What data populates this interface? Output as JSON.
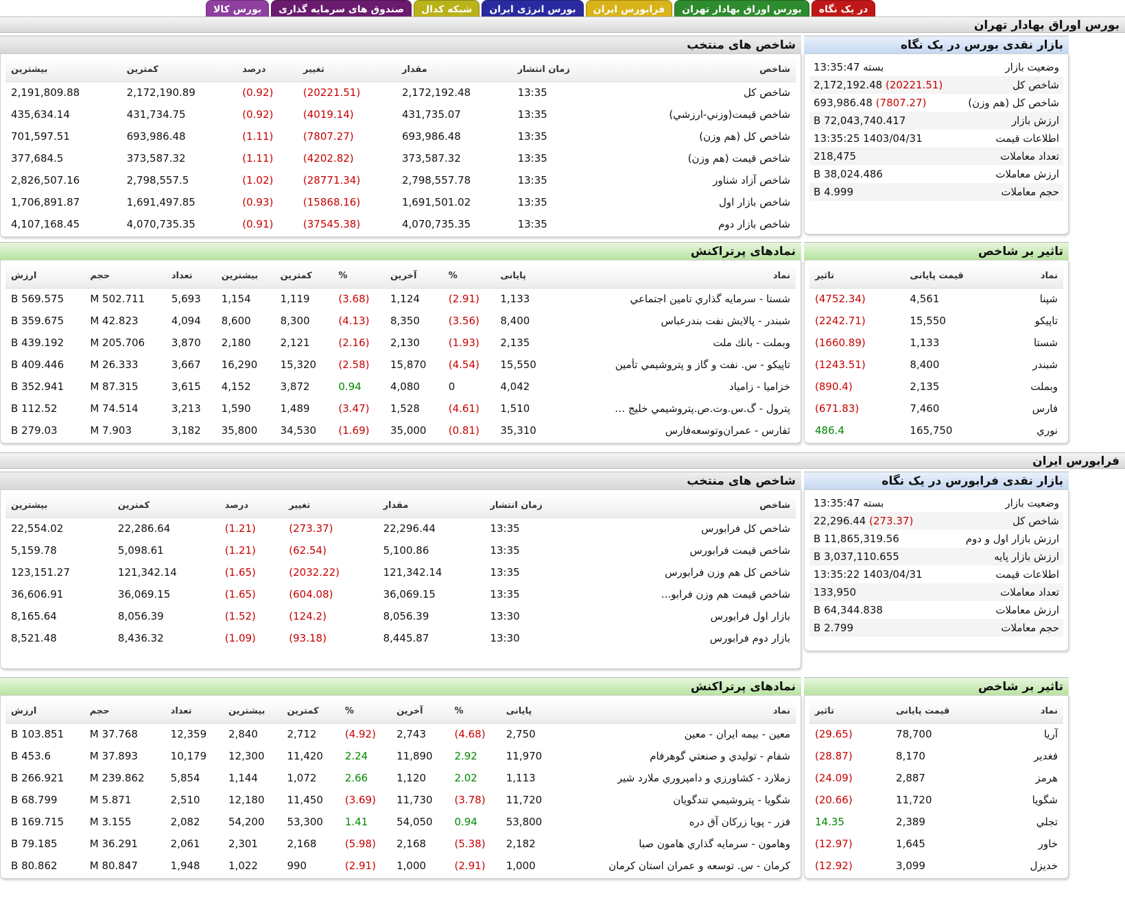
{
  "tabs": [
    {
      "label": "بورس کالا",
      "color": "#8e3fa0"
    },
    {
      "label": "صندوق های سرمایه گذاری",
      "color": "#6a1b6e"
    },
    {
      "label": "شبکه کدال",
      "color": "#b9b21a"
    },
    {
      "label": "بورس انرژی ایران",
      "color": "#2a2aa0"
    },
    {
      "label": "فرابورس ایران",
      "color": "#d8b31a"
    },
    {
      "label": "بورس اوراق بهادار تهران",
      "color": "#2e8b2e"
    },
    {
      "label": "در یک نگاه",
      "color": "#c01818"
    }
  ],
  "tse": {
    "title": "بورس اوراق بهادار تهران",
    "glance": {
      "title": "بازار نقدی بورس در یک نگاه",
      "rows": [
        {
          "k": "وضعیت بازار",
          "v": "بسته 13:35:47",
          "chg": ""
        },
        {
          "k": "شاخص کل",
          "v": "2,172,192.48",
          "chg": "(20221.51)"
        },
        {
          "k": "شاخص کل (هم وزن)",
          "v": "693,986.48",
          "chg": "(7807.27)"
        },
        {
          "k": "ارزش بازار",
          "v": "72,043,740.417 B",
          "chg": ""
        },
        {
          "k": "اطلاعات قیمت",
          "v": "1403/04/31 13:35:25",
          "chg": ""
        },
        {
          "k": "تعداد معاملات",
          "v": "218,475",
          "chg": ""
        },
        {
          "k": "ارزش معاملات",
          "v": "38,024.486 B",
          "chg": ""
        },
        {
          "k": "حجم معاملات",
          "v": "4.999 B",
          "chg": ""
        }
      ]
    },
    "indices": {
      "title": "شاخص های منتخب",
      "headers": [
        "شاخص",
        "زمان انتشار",
        "مقدار",
        "تغییر",
        "درصد",
        "کمترین",
        "بیشترین"
      ],
      "rows": [
        [
          "شاخص کل",
          "13:35",
          "2,172,192.48",
          "(20221.51)",
          "(0.92)",
          "2,172,190.89",
          "2,191,809.88"
        ],
        [
          "شاخص قيمت(وزني-ارزشي)",
          "13:35",
          "431,735.07",
          "(4019.14)",
          "(0.92)",
          "431,734.75",
          "435,634.14"
        ],
        [
          "شاخص کل (هم وزن)",
          "13:35",
          "693,986.48",
          "(7807.27)",
          "(1.11)",
          "693,986.48",
          "701,597.51"
        ],
        [
          "شاخص قیمت (هم وزن)",
          "13:35",
          "373,587.32",
          "(4202.82)",
          "(1.11)",
          "373,587.32",
          "377,684.5"
        ],
        [
          "شاخص آزاد شناور",
          "13:35",
          "2,798,557.78",
          "(28771.34)",
          "(1.02)",
          "2,798,557.5",
          "2,826,507.16"
        ],
        [
          "شاخص بازار اول",
          "13:35",
          "1,691,501.02",
          "(15868.16)",
          "(0.93)",
          "1,691,497.85",
          "1,706,891.87"
        ],
        [
          "شاخص بازار دوم",
          "13:35",
          "4,070,735.35",
          "(37545.38)",
          "(0.91)",
          "4,070,735.35",
          "4,107,168.45"
        ]
      ]
    },
    "impact": {
      "title": "تاثیر بر شاخص",
      "headers": [
        "نماد",
        "قیمت پایانی",
        "تاثیر"
      ],
      "rows": [
        [
          "شپنا",
          "4,561",
          "(4752.34)"
        ],
        [
          "تاپيكو",
          "15,550",
          "(2242.71)"
        ],
        [
          "شستا",
          "1,133",
          "(1660.89)"
        ],
        [
          "شبندر",
          "8,400",
          "(1243.51)"
        ],
        [
          "وبملت",
          "2,135",
          "(890.4)"
        ],
        [
          "فارس",
          "7,460",
          "(671.83)"
        ],
        [
          "نوري",
          "165,750",
          "486.4"
        ]
      ]
    },
    "active": {
      "title": "نمادهای پرتراکنش",
      "headers": [
        "نماد",
        "پایانی",
        "%",
        "آخرین",
        "%",
        "کمترین",
        "بیشترین",
        "تعداد",
        "حجم",
        "ارزش"
      ],
      "rows": [
        [
          "شستا - سرمايه گذاري تامين اجتماعي",
          "1,133",
          "(2.91)",
          "1,124",
          "(3.68)",
          "1,119",
          "1,154",
          "5,693",
          "502.711 M",
          "569.575 B"
        ],
        [
          "شبندر - پالايش نفت بندرعباس",
          "8,400",
          "(3.56)",
          "8,350",
          "(4.13)",
          "8,300",
          "8,600",
          "4,094",
          "42.823 M",
          "359.675 B"
        ],
        [
          "وبملت - بانك ملت",
          "2,135",
          "(1.93)",
          "2,130",
          "(2.16)",
          "2,121",
          "2,180",
          "3,870",
          "205.706 M",
          "439.192 B"
        ],
        [
          "تاپيكو - س. نفت و گاز و پتروشيمي تأمين",
          "15,550",
          "(4.54)",
          "15,870",
          "(2.58)",
          "15,320",
          "16,290",
          "3,667",
          "26.333 M",
          "409.446 B"
        ],
        [
          "خزاميا - زامياد",
          "4,042",
          "0",
          "4,080",
          "0.94",
          "3,872",
          "4,152",
          "3,615",
          "87.315 M",
          "352.941 B"
        ],
        [
          "پترول - گ.س.وت.ص.پتروشيمي خليج ف...",
          "1,510",
          "(4.61)",
          "1,528",
          "(3.47)",
          "1,489",
          "1,590",
          "3,213",
          "74.514 M",
          "112.52 B"
        ],
        [
          "ثفارس - عمران‌وتوسعه‌فارس",
          "35,310",
          "(0.81)",
          "35,000",
          "(1.69)",
          "34,530",
          "35,800",
          "3,182",
          "7.903 M",
          "279.03 B"
        ]
      ]
    }
  },
  "ifb": {
    "title": "فرابورس ایران",
    "glance": {
      "title": "بازار نقدی فرابورس در یک نگاه",
      "rows": [
        {
          "k": "وضعیت بازار",
          "v": "بسته 13:35:47",
          "chg": ""
        },
        {
          "k": "شاخص کل",
          "v": "22,296.44",
          "chg": "(273.37)"
        },
        {
          "k": "ارزش بازار اول و دوم",
          "v": "11,865,319.56 B",
          "chg": ""
        },
        {
          "k": "ارزش بازار پایه",
          "v": "3,037,110.655 B",
          "chg": ""
        },
        {
          "k": "اطلاعات قیمت",
          "v": "1403/04/31 13:35:22",
          "chg": ""
        },
        {
          "k": "تعداد معاملات",
          "v": "133,950",
          "chg": ""
        },
        {
          "k": "ارزش معاملات",
          "v": "64,344.838 B",
          "chg": ""
        },
        {
          "k": "حجم معاملات",
          "v": "2.799 B",
          "chg": ""
        }
      ]
    },
    "indices": {
      "title": "شاخص های منتخب",
      "headers": [
        "شاخص",
        "زمان انتشار",
        "مقدار",
        "تغییر",
        "درصد",
        "کمترین",
        "بیشترین"
      ],
      "rows": [
        [
          "شاخص کل فرابورس",
          "13:35",
          "22,296.44",
          "(273.37)",
          "(1.21)",
          "22,286.64",
          "22,554.02"
        ],
        [
          "شاخص قیمت فرابورس",
          "13:35",
          "5,100.86",
          "(62.54)",
          "(1.21)",
          "5,098.61",
          "5,159.78"
        ],
        [
          "شاخص کل هم وزن فرابورس",
          "13:35",
          "121,342.14",
          "(2032.22)",
          "(1.65)",
          "121,342.14",
          "123,151.27"
        ],
        [
          "شاخص قیمت هم وزن فرابو...",
          "13:35",
          "36,069.15",
          "(604.08)",
          "(1.65)",
          "36,069.15",
          "36,606.91"
        ],
        [
          "بازار اول فرابورس",
          "13:30",
          "8,056.39",
          "(124.2)",
          "(1.52)",
          "8,056.39",
          "8,165.64"
        ],
        [
          "بازار دوم فرابورس",
          "13:30",
          "8,445.87",
          "(93.18)",
          "(1.09)",
          "8,436.32",
          "8,521.48"
        ]
      ]
    },
    "impact": {
      "title": "تاثیر بر شاخص",
      "headers": [
        "نماد",
        "قیمت پایانی",
        "تاثیر"
      ],
      "rows": [
        [
          "آريا",
          "78,700",
          "(29.65)"
        ],
        [
          "فغدير",
          "8,170",
          "(28.87)"
        ],
        [
          "هرمز",
          "2,887",
          "(24.09)"
        ],
        [
          "شگويا",
          "11,720",
          "(20.66)"
        ],
        [
          "تجلي",
          "2,389",
          "14.35"
        ],
        [
          "خاور",
          "1,645",
          "(12.97)"
        ],
        [
          "خديزل",
          "3,099",
          "(12.92)"
        ]
      ]
    },
    "active": {
      "title": "نمادهای پرتراکنش",
      "headers": [
        "نماد",
        "پایانی",
        "%",
        "آخرین",
        "%",
        "کمترین",
        "بیشترین",
        "تعداد",
        "حجم",
        "ارزش"
      ],
      "rows": [
        [
          "معين - بيمه ايران - معين",
          "2,750",
          "(4.68)",
          "2,743",
          "(4.92)",
          "2,712",
          "2,840",
          "12,359",
          "37.768 M",
          "103.851 B"
        ],
        [
          "شفام - توليدي و صنعتي گوهرفام",
          "11,970",
          "2.92",
          "11,890",
          "2.24",
          "11,420",
          "12,300",
          "10,179",
          "37.893 M",
          "453.6 B"
        ],
        [
          "زملارد - كشاورزي و دامپروري ملارد شير",
          "1,113",
          "2.02",
          "1,120",
          "2.66",
          "1,072",
          "1,144",
          "5,854",
          "239.862 M",
          "266.921 B"
        ],
        [
          "شگويا - پتروشيمي تندگويان",
          "11,720",
          "(3.78)",
          "11,730",
          "(3.69)",
          "11,450",
          "12,180",
          "2,510",
          "5.871 M",
          "68.799 B"
        ],
        [
          "فزر - پويا زركان آق دره",
          "53,800",
          "0.94",
          "54,050",
          "1.41",
          "53,300",
          "54,200",
          "2,082",
          "3.155 M",
          "169.715 B"
        ],
        [
          "وهامون - سرمايه گذاري هامون صبا",
          "2,182",
          "(5.38)",
          "2,168",
          "(5.98)",
          "2,168",
          "2,301",
          "2,061",
          "36.291 M",
          "79.185 B"
        ],
        [
          "كرمان - س. توسعه و عمران استان كرمان",
          "1,000",
          "(2.91)",
          "1,000",
          "(2.91)",
          "990",
          "1,022",
          "1,948",
          "80.847 M",
          "80.862 B"
        ]
      ]
    }
  }
}
